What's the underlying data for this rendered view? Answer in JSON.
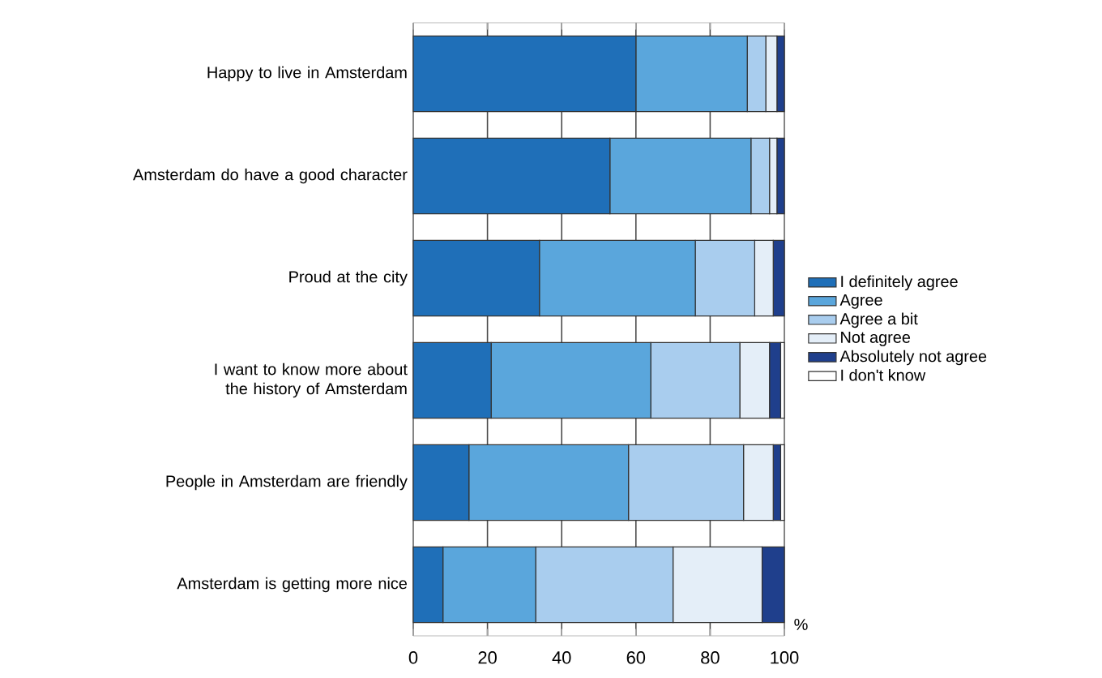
{
  "chart_data": {
    "type": "bar",
    "orientation": "horizontal",
    "stacked": true,
    "categories": [
      "Happy to live in Amsterdam",
      "Amsterdam do have a good character",
      "Proud at the city",
      "I want to know more about the history of Amsterdam",
      "People in Amsterdam are friendly",
      "Amsterdam is getting more nice"
    ],
    "series": [
      {
        "name": "I definitely agree",
        "color": "#1f6fb8",
        "values": [
          60,
          53,
          34,
          21,
          15,
          8
        ]
      },
      {
        "name": "Agree",
        "color": "#5aa6dc",
        "values": [
          30,
          38,
          42,
          43,
          43,
          25
        ]
      },
      {
        "name": "Agree a bit",
        "color": "#a9cdee",
        "values": [
          5,
          5,
          16,
          24,
          31,
          37
        ]
      },
      {
        "name": "Not agree",
        "color": "#e4eef8",
        "values": [
          3,
          2,
          5,
          8,
          8,
          24
        ]
      },
      {
        "name": "Absolutely not agree",
        "color": "#1f3f8c",
        "values": [
          2,
          2,
          3,
          3,
          2,
          6
        ]
      },
      {
        "name": "I don't know",
        "color": "#ffffff",
        "values": [
          0,
          0,
          0,
          1,
          1,
          0
        ]
      }
    ],
    "xlim": [
      0,
      100
    ],
    "xticks": [
      0,
      20,
      40,
      60,
      80,
      100
    ],
    "grid": "x",
    "legend": "right",
    "annotations": [
      "%"
    ]
  }
}
